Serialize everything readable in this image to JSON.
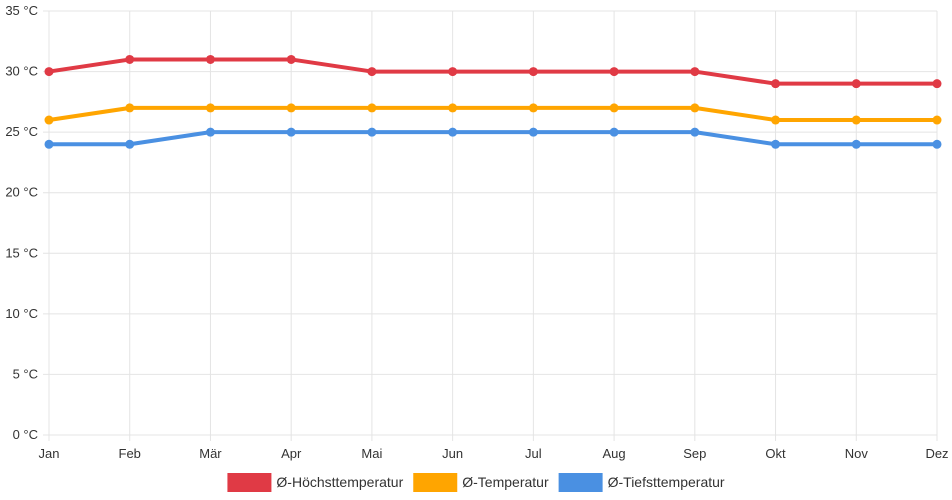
{
  "chart_data": {
    "type": "line",
    "categories": [
      "Jan",
      "Feb",
      "Mär",
      "Apr",
      "Mai",
      "Jun",
      "Jul",
      "Aug",
      "Sep",
      "Okt",
      "Nov",
      "Dez"
    ],
    "series": [
      {
        "name": "Ø-Höchsttemperatur",
        "color": "#e03a45",
        "values": [
          30,
          31,
          31,
          31,
          30,
          30,
          30,
          30,
          30,
          29,
          29,
          29
        ]
      },
      {
        "name": "Ø-Temperatur",
        "color": "#ffa500",
        "values": [
          26,
          27,
          27,
          27,
          27,
          27,
          27,
          27,
          27,
          26,
          26,
          26
        ]
      },
      {
        "name": "Ø-Tiefsttemperatur",
        "color": "#4a90e2",
        "values": [
          24,
          24,
          25,
          25,
          25,
          25,
          25,
          25,
          25,
          24,
          24,
          24
        ]
      }
    ],
    "y_ticks": [
      "0 °C",
      "5 °C",
      "10 °C",
      "15 °C",
      "20 °C",
      "25 °C",
      "30 °C",
      "35 °C"
    ],
    "ylim": [
      0,
      35
    ],
    "y_step": 5,
    "grid": true,
    "legend_position": "bottom"
  }
}
